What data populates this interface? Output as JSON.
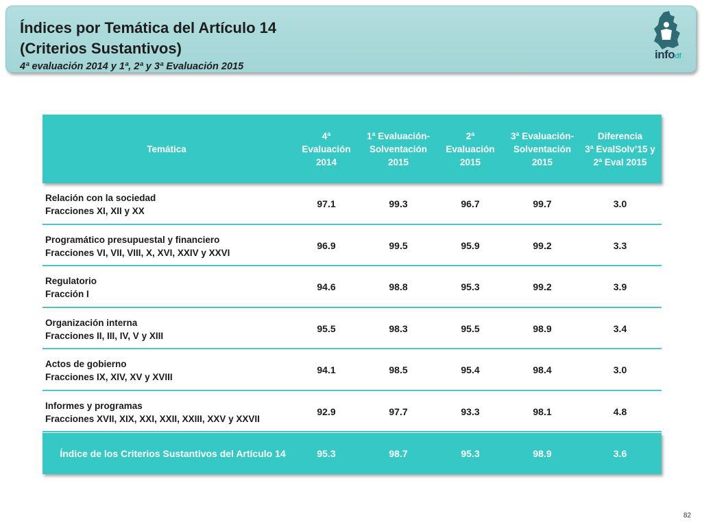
{
  "header": {
    "title_line1": "Índices por Temática del Artículo 14",
    "title_line2": "(Criterios Sustantivos)",
    "subtitle": "4ª evaluación 2014 y 1ª, 2ª y 3ª Evaluación 2015",
    "logo_text": "info",
    "logo_suffix": "df"
  },
  "table": {
    "headers": [
      "Temática",
      "4ª\nEvaluación\n2014",
      "1ª Evaluación-\nSolventación\n2015",
      "2ª\nEvaluación\n2015",
      "3ª Evaluación-\nSolventación\n2015",
      "Diferencia\n3ª EvalSolv’15 y\n2ª Eval 2015"
    ],
    "rows": [
      {
        "label": "Relación con la sociedad\nFracciones XI, XII y XX",
        "values": [
          "97.1",
          "99.3",
          "96.7",
          "99.7",
          "3.0"
        ]
      },
      {
        "label": "Programático presupuestal y financiero\nFracciones VI, VII, VIII, X, XVI, XXIV y XXVI",
        "values": [
          "96.9",
          "99.5",
          "95.9",
          "99.2",
          "3.3"
        ]
      },
      {
        "label": "Regulatorio\nFracción I",
        "values": [
          "94.6",
          "98.8",
          "95.3",
          "99.2",
          "3.9"
        ]
      },
      {
        "label": "Organización interna\nFracciones II, III, IV, V y XIII",
        "values": [
          "95.5",
          "98.3",
          "95.5",
          "98.9",
          "3.4"
        ]
      },
      {
        "label": "Actos de gobierno\nFracciones IX, XIV, XV y XVIII",
        "values": [
          "94.1",
          "98.5",
          "95.4",
          "98.4",
          "3.0"
        ]
      },
      {
        "label": "Informes y programas\nFracciones XVII, XIX, XXI, XXII, XXIII, XXV y XXVII",
        "values": [
          "92.9",
          "97.7",
          "93.3",
          "98.1",
          "4.8"
        ]
      }
    ],
    "total": {
      "label": "Índice de los Criterios Sustantivos del Artículo 14",
      "values": [
        "95.3",
        "98.7",
        "95.3",
        "98.9",
        "3.6"
      ]
    }
  },
  "footer": {
    "page_number": "82"
  },
  "colors": {
    "accent": "#36c8c4",
    "header_band": "#a3d5d6",
    "row_divider": "#4ac4cc"
  }
}
